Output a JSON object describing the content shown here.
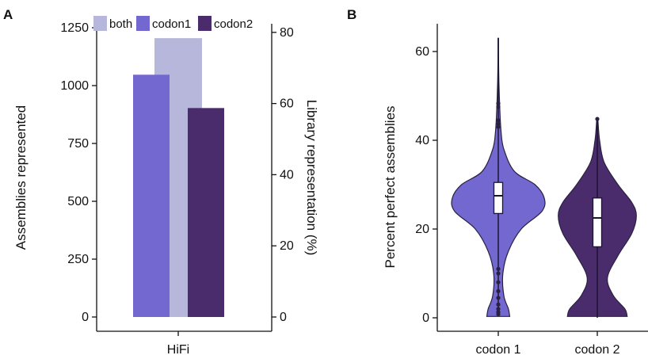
{
  "panels": {
    "a": {
      "letter": "A"
    },
    "b": {
      "letter": "B"
    }
  },
  "chart_data": [
    {
      "type": "bar",
      "panel": "A",
      "categories": [
        "HiFi"
      ],
      "series": [
        {
          "name": "both",
          "values": [
            1205
          ],
          "color": "#b7b7dc"
        },
        {
          "name": "codon1",
          "values": [
            1047
          ],
          "color": "#7368d0"
        },
        {
          "name": "codon2",
          "values": [
            903
          ],
          "color": "#4a2c6c"
        }
      ],
      "xlabel": "HiFi",
      "ylabel": "Assemblies represented",
      "ylabel_right": "Library representation (%)",
      "ylim": [
        0,
        1250
      ],
      "ylim_right": [
        0,
        81.3
      ],
      "yticks": [
        "0",
        "250",
        "500",
        "750",
        "1000",
        "1250"
      ],
      "yticks_right": [
        "0",
        "20",
        "40",
        "60",
        "80"
      ],
      "legend": [
        "both",
        "codon1",
        "codon2"
      ],
      "legend_position": "top"
    },
    {
      "type": "violin",
      "panel": "B",
      "categories": [
        "codon 1",
        "codon 2"
      ],
      "ylabel": "Percent perfect assemblies",
      "ylim": [
        0,
        65
      ],
      "yticks": [
        "0",
        "20",
        "40",
        "60"
      ],
      "colors": {
        "codon 1": "#7368d0",
        "codon 2": "#4a2c6c"
      },
      "distributions": [
        {
          "name": "codon 1",
          "min": 0.5,
          "q1": 23.5,
          "median": 27.5,
          "q3": 30.5,
          "max": 63,
          "outliers": [
            43,
            43.7,
            44.5,
            47.5,
            48.3,
            0.8,
            1.3,
            2,
            3,
            4.5,
            6,
            8,
            10,
            11
          ],
          "density": [
            [
              0.3,
              0.25
            ],
            [
              2,
              0.22
            ],
            [
              5,
              0.12
            ],
            [
              10,
              0.1
            ],
            [
              15,
              0.22
            ],
            [
              20,
              0.5
            ],
            [
              24,
              0.95
            ],
            [
              27,
              1.0
            ],
            [
              30,
              0.8
            ],
            [
              33,
              0.35
            ],
            [
              38,
              0.12
            ],
            [
              42,
              0.06
            ],
            [
              48,
              0.03
            ],
            [
              55,
              0.01
            ],
            [
              63,
              0.005
            ]
          ]
        },
        {
          "name": "codon 2",
          "min": 0,
          "q1": 16,
          "median": 22.5,
          "q3": 27,
          "max": 45,
          "outliers": [
            44.8
          ],
          "density": [
            [
              0.3,
              0.65
            ],
            [
              2,
              0.6
            ],
            [
              5,
              0.35
            ],
            [
              9,
              0.22
            ],
            [
              14,
              0.45
            ],
            [
              19,
              0.75
            ],
            [
              23,
              0.85
            ],
            [
              26,
              0.75
            ],
            [
              30,
              0.45
            ],
            [
              35,
              0.15
            ],
            [
              40,
              0.05
            ],
            [
              45,
              0.01
            ]
          ]
        }
      ]
    }
  ]
}
